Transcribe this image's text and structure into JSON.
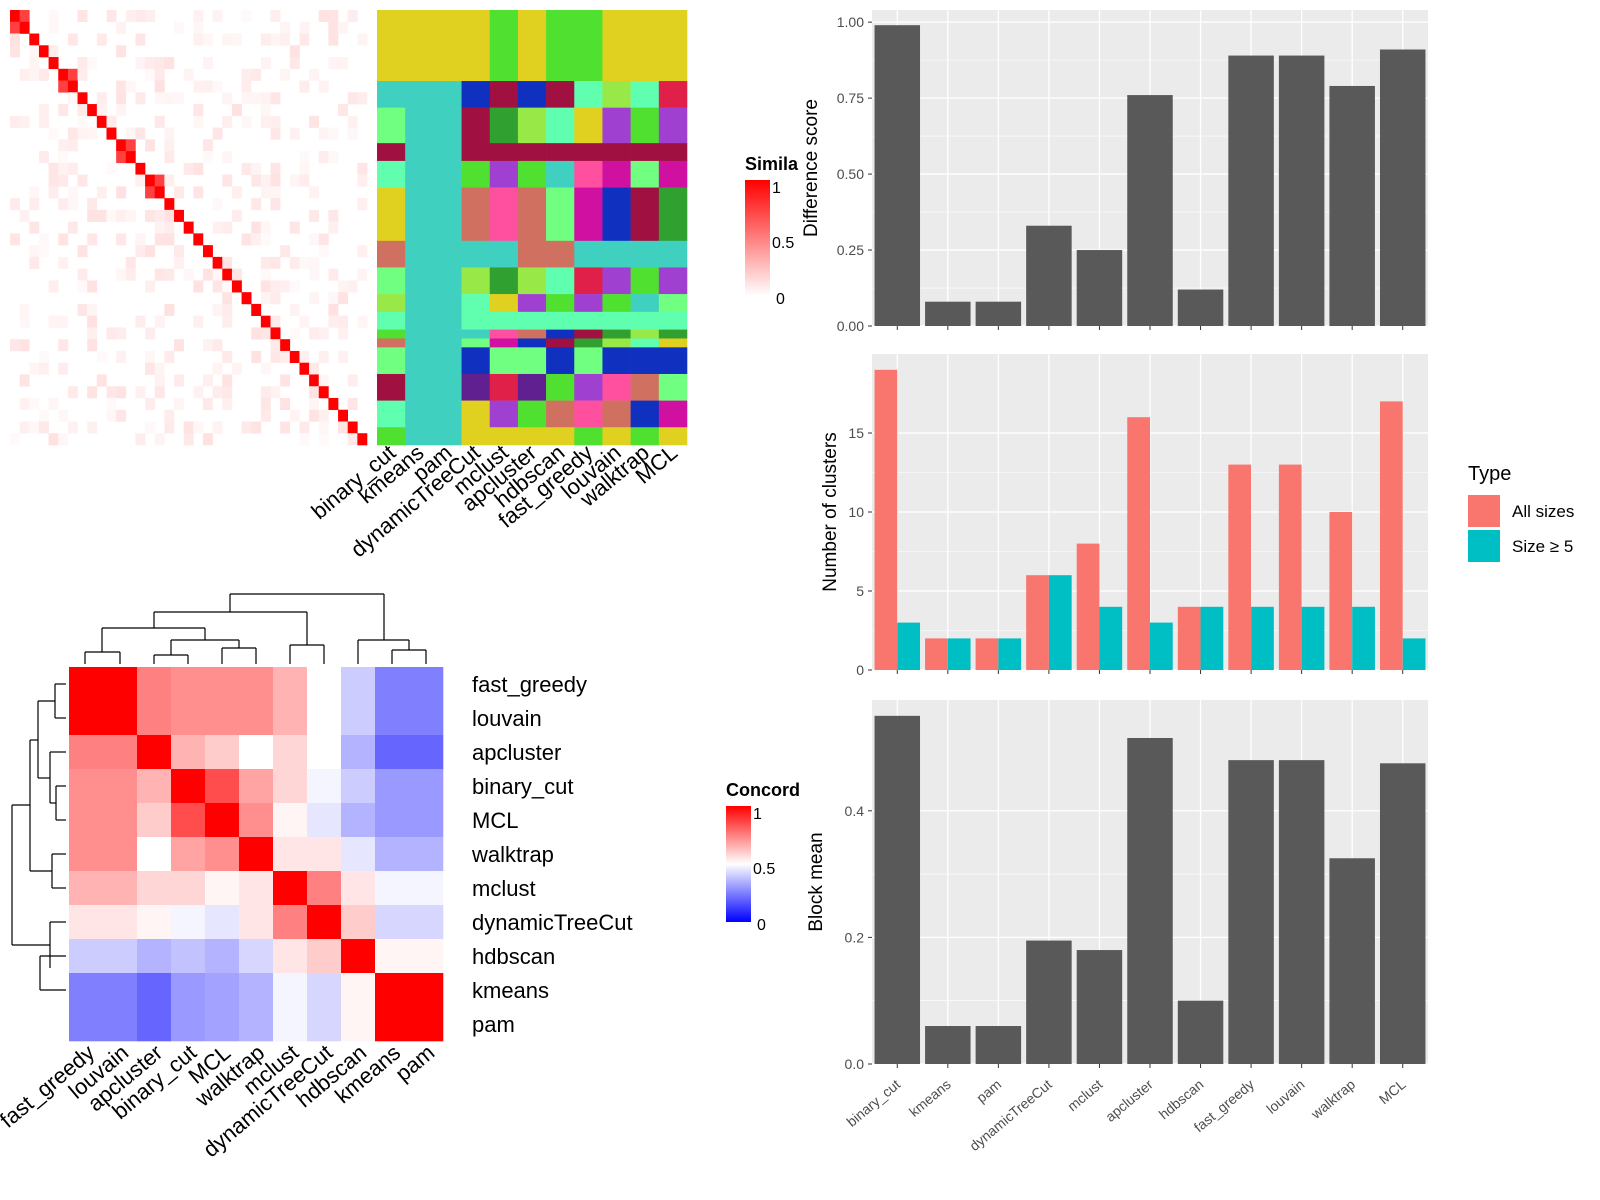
{
  "chart_data": [
    {
      "type": "heatmap",
      "panel": "similarity-heatmap-with-cluster-annotation",
      "legend": {
        "title": "Simila",
        "ticks": [
          "1",
          "0.5",
          "0"
        ]
      },
      "methods": [
        "binary_cut",
        "kmeans",
        "pam",
        "dynamicTreeCut",
        "mclust",
        "apcluster",
        "hdbscan",
        "fast_greedy",
        "louvain",
        "walktrap",
        "MCL"
      ]
    },
    {
      "type": "heatmap",
      "panel": "concordance-heatmap",
      "legend": {
        "title": "Concord",
        "ticks": [
          "1",
          "0.5",
          "0"
        ]
      },
      "rows": [
        "fast_greedy",
        "louvain",
        "apcluster",
        "binary_cut",
        "MCL",
        "walktrap",
        "mclust",
        "dynamicTreeCut",
        "hdbscan",
        "kmeans",
        "pam"
      ],
      "cols": [
        "fast_greedy",
        "louvain",
        "apcluster",
        "binary_cut",
        "MCL",
        "walktrap",
        "mclust",
        "dynamicTreeCut",
        "hdbscan",
        "kmeans",
        "pam"
      ],
      "values": [
        [
          1.0,
          1.0,
          0.75,
          0.72,
          0.72,
          0.72,
          0.65,
          0.5,
          0.4,
          0.25,
          0.25
        ],
        [
          1.0,
          1.0,
          0.75,
          0.72,
          0.72,
          0.72,
          0.65,
          0.5,
          0.4,
          0.25,
          0.25
        ],
        [
          0.75,
          0.75,
          1.0,
          0.65,
          0.6,
          0.5,
          0.58,
          0.5,
          0.35,
          0.2,
          0.2
        ],
        [
          0.72,
          0.72,
          0.65,
          1.0,
          0.85,
          0.68,
          0.58,
          0.48,
          0.4,
          0.3,
          0.3
        ],
        [
          0.72,
          0.72,
          0.6,
          0.85,
          1.0,
          0.72,
          0.52,
          0.45,
          0.35,
          0.3,
          0.3
        ],
        [
          0.72,
          0.72,
          0.5,
          0.68,
          0.72,
          1.0,
          0.55,
          0.55,
          0.45,
          0.35,
          0.35
        ],
        [
          0.65,
          0.65,
          0.58,
          0.58,
          0.52,
          0.55,
          1.0,
          0.75,
          0.55,
          0.48,
          0.48
        ],
        [
          0.55,
          0.55,
          0.52,
          0.48,
          0.45,
          0.55,
          0.75,
          1.0,
          0.6,
          0.42,
          0.42
        ],
        [
          0.4,
          0.4,
          0.35,
          0.38,
          0.35,
          0.42,
          0.55,
          0.6,
          1.0,
          0.52,
          0.52
        ],
        [
          0.25,
          0.25,
          0.2,
          0.3,
          0.32,
          0.35,
          0.48,
          0.42,
          0.52,
          1.0,
          1.0
        ],
        [
          0.25,
          0.25,
          0.2,
          0.3,
          0.32,
          0.35,
          0.48,
          0.42,
          0.52,
          1.0,
          1.0
        ]
      ]
    },
    {
      "type": "bar",
      "panel": "difference-score",
      "categories": [
        "binary_cut",
        "kmeans",
        "pam",
        "dynamicTreeCut",
        "mclust",
        "apcluster",
        "hdbscan",
        "fast_greedy",
        "louvain",
        "walktrap",
        "MCL"
      ],
      "values": [
        0.99,
        0.08,
        0.08,
        0.33,
        0.25,
        0.76,
        0.12,
        0.89,
        0.89,
        0.79,
        0.91
      ],
      "ylabel": "Difference score",
      "ylim": [
        0,
        1.04
      ],
      "yticks": [
        "0.00",
        "0.25",
        "0.50",
        "0.75",
        "1.00"
      ]
    },
    {
      "type": "bar",
      "panel": "number-of-clusters",
      "categories": [
        "binary_cut",
        "kmeans",
        "pam",
        "dynamicTreeCut",
        "mclust",
        "apcluster",
        "hdbscan",
        "fast_greedy",
        "louvain",
        "walktrap",
        "MCL"
      ],
      "series": [
        {
          "name": "All sizes",
          "color": "#F8766D",
          "values": [
            19,
            2,
            2,
            6,
            8,
            16,
            4,
            13,
            13,
            10,
            17
          ]
        },
        {
          "name": "Size ≥ 5",
          "color": "#00BFC4",
          "values": [
            3,
            2,
            2,
            6,
            4,
            3,
            4,
            4,
            4,
            4,
            2
          ]
        }
      ],
      "ylabel": "Number of clusters",
      "ylim": [
        0,
        20
      ],
      "yticks": [
        "0",
        "5",
        "10",
        "15"
      ],
      "legend": {
        "title": "Type",
        "position": "right"
      }
    },
    {
      "type": "bar",
      "panel": "block-mean",
      "categories": [
        "binary_cut",
        "kmeans",
        "pam",
        "dynamicTreeCut",
        "mclust",
        "apcluster",
        "hdbscan",
        "fast_greedy",
        "louvain",
        "walktrap",
        "MCL"
      ],
      "values": [
        0.55,
        0.06,
        0.06,
        0.195,
        0.18,
        0.515,
        0.1,
        0.48,
        0.48,
        0.325,
        0.475
      ],
      "ylabel": "Block mean",
      "ylim": [
        0,
        0.575
      ],
      "yticks": [
        "0.0",
        "0.2",
        "0.4"
      ]
    }
  ]
}
